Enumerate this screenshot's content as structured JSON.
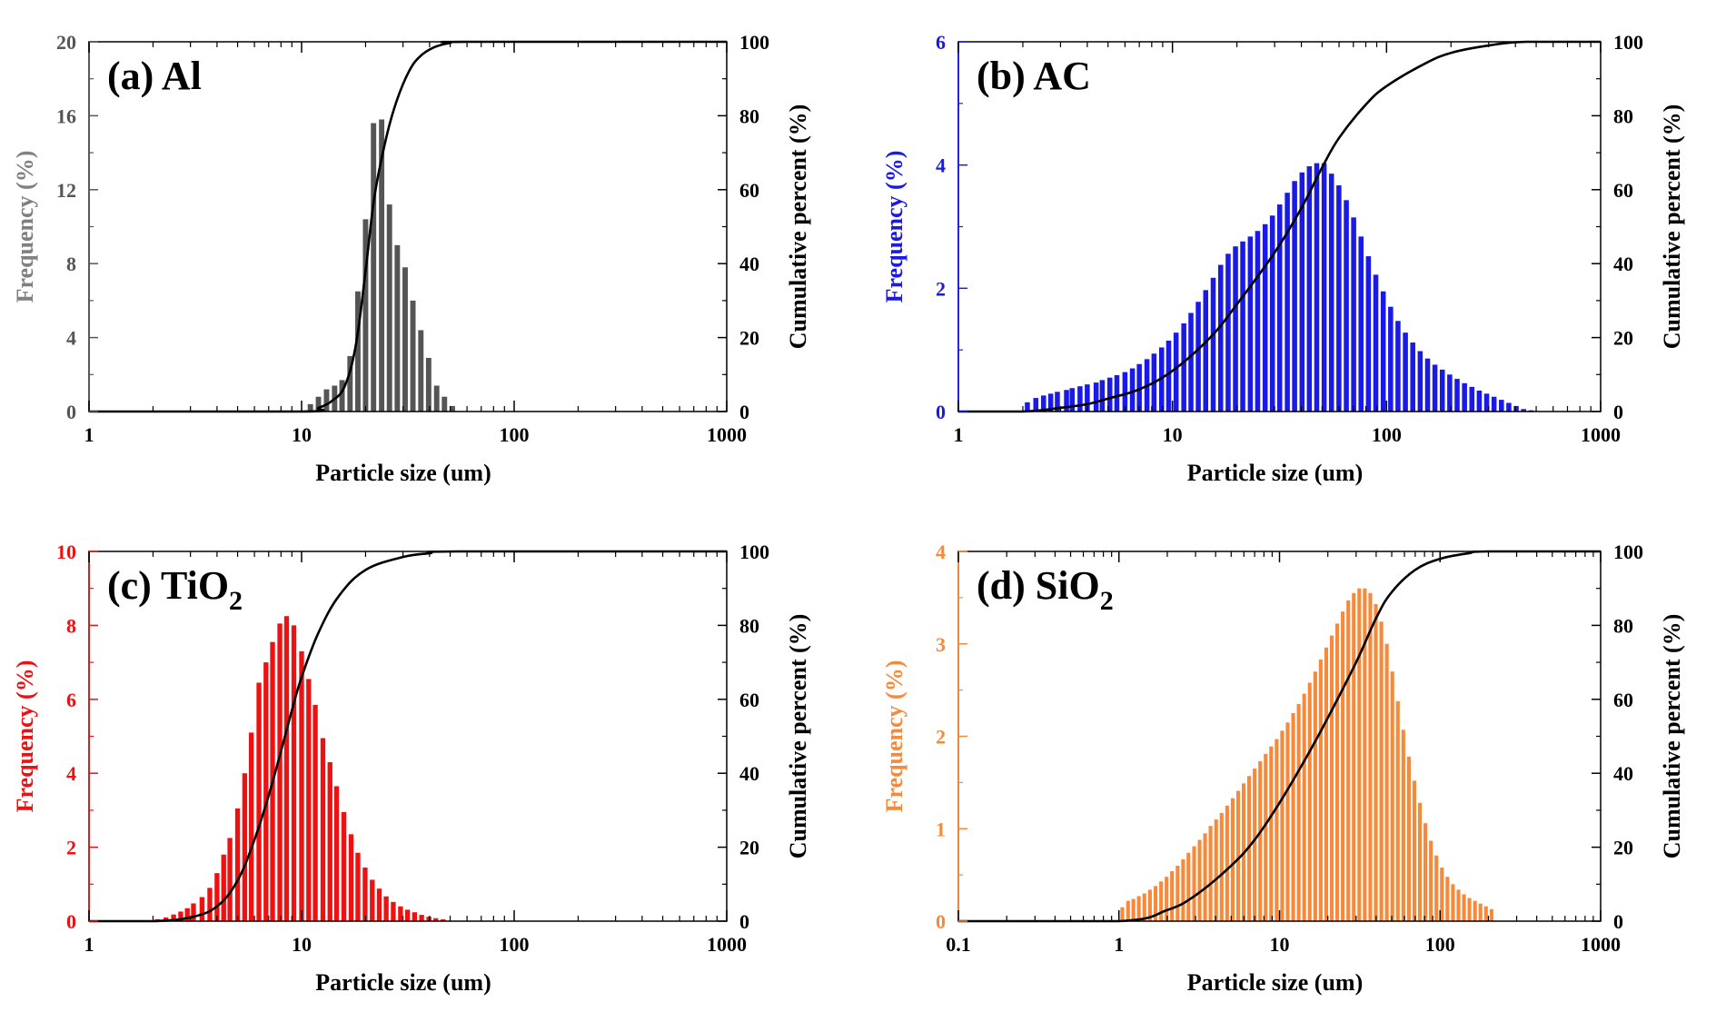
{
  "chart_data": [
    {
      "type": "bar",
      "panel_label": "(a) Al",
      "label_main": "(a) Al",
      "label_sub": "",
      "xlabel": "Particle size (um)",
      "ylabel_left": "Frequency (%)",
      "ylabel_right": "Cumulative percent (%)",
      "x_scale": "log",
      "xlim": [
        1,
        1000
      ],
      "x_ticks": [
        "1",
        "10",
        "100",
        "1000"
      ],
      "ylim_left": [
        0,
        20
      ],
      "y_ticks_left": [
        "0",
        "4",
        "8",
        "12",
        "16",
        "20"
      ],
      "ylim_right": [
        0,
        100
      ],
      "y_ticks_right": [
        "0",
        "20",
        "40",
        "60",
        "80",
        "100"
      ],
      "bar_color": "#555555",
      "ylabel_left_color": "#808080",
      "tick_left_color": "#555555",
      "curve_color": "#000000",
      "bars": [
        {
          "x": 11.0,
          "y": 0.4
        },
        {
          "x": 12.0,
          "y": 0.8
        },
        {
          "x": 13.1,
          "y": 1.2
        },
        {
          "x": 14.3,
          "y": 1.4
        },
        {
          "x": 15.5,
          "y": 1.7
        },
        {
          "x": 16.9,
          "y": 3.0
        },
        {
          "x": 18.4,
          "y": 6.5
        },
        {
          "x": 20.0,
          "y": 10.4
        },
        {
          "x": 21.8,
          "y": 15.6
        },
        {
          "x": 23.8,
          "y": 15.8
        },
        {
          "x": 25.9,
          "y": 11.2
        },
        {
          "x": 28.2,
          "y": 9.0
        },
        {
          "x": 30.7,
          "y": 7.8
        },
        {
          "x": 33.4,
          "y": 6.0
        },
        {
          "x": 36.4,
          "y": 4.4
        },
        {
          "x": 39.6,
          "y": 2.9
        },
        {
          "x": 43.2,
          "y": 1.4
        },
        {
          "x": 47.0,
          "y": 0.8
        },
        {
          "x": 51.2,
          "y": 0.3
        }
      ],
      "cumulative": [
        {
          "x": 1,
          "y": 0
        },
        {
          "x": 10,
          "y": 0
        },
        {
          "x": 12,
          "y": 1
        },
        {
          "x": 14,
          "y": 3
        },
        {
          "x": 16,
          "y": 7
        },
        {
          "x": 18,
          "y": 18
        },
        {
          "x": 20,
          "y": 38
        },
        {
          "x": 22,
          "y": 58
        },
        {
          "x": 25,
          "y": 74
        },
        {
          "x": 28,
          "y": 84
        },
        {
          "x": 32,
          "y": 92
        },
        {
          "x": 36,
          "y": 96
        },
        {
          "x": 42,
          "y": 98.5
        },
        {
          "x": 50,
          "y": 99.7
        },
        {
          "x": 60,
          "y": 100
        },
        {
          "x": 1000,
          "y": 100
        }
      ]
    },
    {
      "type": "bar",
      "panel_label": "(b) AC",
      "label_main": "(b) AC",
      "label_sub": "",
      "xlabel": "Particle size (um)",
      "ylabel_left": "Frequency (%)",
      "ylabel_right": "Cumulative percent (%)",
      "x_scale": "log",
      "xlim": [
        1,
        1000
      ],
      "x_ticks": [
        "1",
        "10",
        "100",
        "1000"
      ],
      "ylim_left": [
        0,
        6
      ],
      "y_ticks_left": [
        "0",
        "2",
        "4",
        "6"
      ],
      "ylim_right": [
        0,
        100
      ],
      "y_ticks_right": [
        "0",
        "20",
        "40",
        "60",
        "80",
        "100"
      ],
      "bar_color": "#1a1ae6",
      "ylabel_left_color": "#1a1ae6",
      "tick_left_color": "#1a1ae6",
      "curve_color": "#000000",
      "bars": [
        {
          "x": 2.1,
          "y": 0.15
        },
        {
          "x": 2.3,
          "y": 0.22
        },
        {
          "x": 2.5,
          "y": 0.26
        },
        {
          "x": 2.7,
          "y": 0.29
        },
        {
          "x": 2.9,
          "y": 0.32
        },
        {
          "x": 3.2,
          "y": 0.35
        },
        {
          "x": 3.4,
          "y": 0.38
        },
        {
          "x": 3.7,
          "y": 0.41
        },
        {
          "x": 4.0,
          "y": 0.44
        },
        {
          "x": 4.4,
          "y": 0.47
        },
        {
          "x": 4.7,
          "y": 0.51
        },
        {
          "x": 5.1,
          "y": 0.55
        },
        {
          "x": 5.5,
          "y": 0.59
        },
        {
          "x": 6.0,
          "y": 0.64
        },
        {
          "x": 6.5,
          "y": 0.7
        },
        {
          "x": 7.0,
          "y": 0.77
        },
        {
          "x": 7.6,
          "y": 0.85
        },
        {
          "x": 8.2,
          "y": 0.94
        },
        {
          "x": 8.9,
          "y": 1.04
        },
        {
          "x": 9.6,
          "y": 1.15
        },
        {
          "x": 10.4,
          "y": 1.28
        },
        {
          "x": 11.3,
          "y": 1.43
        },
        {
          "x": 12.2,
          "y": 1.6
        },
        {
          "x": 13.2,
          "y": 1.78
        },
        {
          "x": 14.3,
          "y": 1.97
        },
        {
          "x": 15.5,
          "y": 2.17
        },
        {
          "x": 16.8,
          "y": 2.38
        },
        {
          "x": 18.2,
          "y": 2.56
        },
        {
          "x": 19.7,
          "y": 2.68
        },
        {
          "x": 21.3,
          "y": 2.76
        },
        {
          "x": 23.1,
          "y": 2.84
        },
        {
          "x": 25.0,
          "y": 2.93
        },
        {
          "x": 27.1,
          "y": 3.04
        },
        {
          "x": 29.3,
          "y": 3.18
        },
        {
          "x": 31.7,
          "y": 3.36
        },
        {
          "x": 34.4,
          "y": 3.55
        },
        {
          "x": 37.2,
          "y": 3.74
        },
        {
          "x": 40.3,
          "y": 3.88
        },
        {
          "x": 43.6,
          "y": 3.98
        },
        {
          "x": 47.2,
          "y": 4.03
        },
        {
          "x": 51.1,
          "y": 4.03
        },
        {
          "x": 55.3,
          "y": 3.86
        },
        {
          "x": 59.9,
          "y": 3.67
        },
        {
          "x": 64.9,
          "y": 3.43
        },
        {
          "x": 70.2,
          "y": 3.15
        },
        {
          "x": 76.0,
          "y": 2.84
        },
        {
          "x": 82.3,
          "y": 2.52
        },
        {
          "x": 89.1,
          "y": 2.22
        },
        {
          "x": 96.5,
          "y": 1.95
        },
        {
          "x": 104.5,
          "y": 1.7
        },
        {
          "x": 113.1,
          "y": 1.47
        },
        {
          "x": 122.5,
          "y": 1.28
        },
        {
          "x": 132.6,
          "y": 1.12
        },
        {
          "x": 143.6,
          "y": 0.98
        },
        {
          "x": 155.5,
          "y": 0.86
        },
        {
          "x": 168.3,
          "y": 0.76
        },
        {
          "x": 182.2,
          "y": 0.68
        },
        {
          "x": 197.3,
          "y": 0.6
        },
        {
          "x": 213.6,
          "y": 0.53
        },
        {
          "x": 231.3,
          "y": 0.46
        },
        {
          "x": 250.4,
          "y": 0.4
        },
        {
          "x": 271.1,
          "y": 0.34
        },
        {
          "x": 293.5,
          "y": 0.29
        },
        {
          "x": 317.8,
          "y": 0.24
        },
        {
          "x": 344.1,
          "y": 0.19
        },
        {
          "x": 372.5,
          "y": 0.14
        },
        {
          "x": 403.3,
          "y": 0.09
        },
        {
          "x": 436.7,
          "y": 0.04
        },
        {
          "x": 472.8,
          "y": 0.02
        }
      ],
      "cumulative": [
        {
          "x": 1,
          "y": 0
        },
        {
          "x": 2,
          "y": 0
        },
        {
          "x": 3,
          "y": 1
        },
        {
          "x": 4,
          "y": 2
        },
        {
          "x": 5,
          "y": 3.5
        },
        {
          "x": 7,
          "y": 6
        },
        {
          "x": 10,
          "y": 11
        },
        {
          "x": 15,
          "y": 20
        },
        {
          "x": 20,
          "y": 29
        },
        {
          "x": 30,
          "y": 43
        },
        {
          "x": 40,
          "y": 55
        },
        {
          "x": 50,
          "y": 66
        },
        {
          "x": 60,
          "y": 74
        },
        {
          "x": 80,
          "y": 83
        },
        {
          "x": 100,
          "y": 88
        },
        {
          "x": 150,
          "y": 94
        },
        {
          "x": 200,
          "y": 97
        },
        {
          "x": 300,
          "y": 99
        },
        {
          "x": 450,
          "y": 100
        },
        {
          "x": 1000,
          "y": 100
        }
      ]
    },
    {
      "type": "bar",
      "panel_label": "(c) TiO2",
      "label_main": "(c) TiO",
      "label_sub": "2",
      "xlabel": "Particle size (um)",
      "ylabel_left": "Frequency (%)",
      "ylabel_right": "Cumulative percent (%)",
      "x_scale": "log",
      "xlim": [
        1,
        1000
      ],
      "x_ticks": [
        "1",
        "10",
        "100",
        "1000"
      ],
      "ylim_left": [
        0,
        10
      ],
      "y_ticks_left": [
        "0",
        "2",
        "4",
        "6",
        "8",
        "10"
      ],
      "ylim_right": [
        0,
        100
      ],
      "y_ticks_right": [
        "0",
        "20",
        "40",
        "60",
        "80",
        "100"
      ],
      "bar_color": "#ee1111",
      "ylabel_left_color": "#ee1111",
      "tick_left_color": "#ee1111",
      "curve_color": "#000000",
      "bars": [
        {
          "x": 2.1,
          "y": 0.05
        },
        {
          "x": 2.3,
          "y": 0.1
        },
        {
          "x": 2.5,
          "y": 0.18
        },
        {
          "x": 2.7,
          "y": 0.26
        },
        {
          "x": 2.9,
          "y": 0.35
        },
        {
          "x": 3.1,
          "y": 0.48
        },
        {
          "x": 3.4,
          "y": 0.65
        },
        {
          "x": 3.7,
          "y": 0.9
        },
        {
          "x": 4.0,
          "y": 1.3
        },
        {
          "x": 4.3,
          "y": 1.8
        },
        {
          "x": 4.6,
          "y": 2.25
        },
        {
          "x": 5.0,
          "y": 3.05
        },
        {
          "x": 5.4,
          "y": 4.0
        },
        {
          "x": 5.8,
          "y": 5.1
        },
        {
          "x": 6.3,
          "y": 6.45
        },
        {
          "x": 6.8,
          "y": 7.0
        },
        {
          "x": 7.3,
          "y": 7.55
        },
        {
          "x": 7.9,
          "y": 8.05
        },
        {
          "x": 8.5,
          "y": 8.25
        },
        {
          "x": 9.2,
          "y": 8.0
        },
        {
          "x": 10.0,
          "y": 7.3
        },
        {
          "x": 10.8,
          "y": 6.55
        },
        {
          "x": 11.6,
          "y": 5.85
        },
        {
          "x": 12.6,
          "y": 4.95
        },
        {
          "x": 13.6,
          "y": 4.3
        },
        {
          "x": 14.6,
          "y": 3.65
        },
        {
          "x": 15.8,
          "y": 2.95
        },
        {
          "x": 17.1,
          "y": 2.35
        },
        {
          "x": 18.4,
          "y": 1.85
        },
        {
          "x": 19.9,
          "y": 1.45
        },
        {
          "x": 21.5,
          "y": 1.12
        },
        {
          "x": 23.2,
          "y": 0.88
        },
        {
          "x": 25.0,
          "y": 0.67
        },
        {
          "x": 27.0,
          "y": 0.52
        },
        {
          "x": 29.2,
          "y": 0.4
        },
        {
          "x": 31.5,
          "y": 0.31
        },
        {
          "x": 34.0,
          "y": 0.24
        },
        {
          "x": 36.7,
          "y": 0.17
        },
        {
          "x": 39.7,
          "y": 0.12
        },
        {
          "x": 42.8,
          "y": 0.08
        },
        {
          "x": 46.3,
          "y": 0.05
        }
      ],
      "cumulative": [
        {
          "x": 1,
          "y": 0
        },
        {
          "x": 2,
          "y": 0
        },
        {
          "x": 3,
          "y": 1
        },
        {
          "x": 4,
          "y": 4
        },
        {
          "x": 5,
          "y": 11
        },
        {
          "x": 6,
          "y": 22
        },
        {
          "x": 7,
          "y": 34
        },
        {
          "x": 8,
          "y": 46
        },
        {
          "x": 9,
          "y": 57
        },
        {
          "x": 10,
          "y": 66
        },
        {
          "x": 12,
          "y": 78
        },
        {
          "x": 15,
          "y": 88
        },
        {
          "x": 20,
          "y": 95
        },
        {
          "x": 30,
          "y": 98.5
        },
        {
          "x": 40,
          "y": 99.5
        },
        {
          "x": 55,
          "y": 100
        },
        {
          "x": 1000,
          "y": 100
        }
      ]
    },
    {
      "type": "bar",
      "panel_label": "(d) SiO2",
      "label_main": "(d) SiO",
      "label_sub": "2",
      "xlabel": "Particle size (um)",
      "ylabel_left": "Frequency (%)",
      "ylabel_right": "Cumulative percent (%)",
      "x_scale": "log",
      "xlim": [
        0.1,
        1000
      ],
      "x_ticks": [
        "0.1",
        "1",
        "10",
        "100",
        "1000"
      ],
      "ylim_left": [
        0,
        4
      ],
      "y_ticks_left": [
        "0",
        "1",
        "2",
        "3",
        "4"
      ],
      "ylim_right": [
        0,
        100
      ],
      "y_ticks_right": [
        "0",
        "20",
        "40",
        "60",
        "80",
        "100"
      ],
      "bar_color": "#f7893a",
      "ylabel_left_color": "#f7893a",
      "tick_left_color": "#f7893a",
      "curve_color": "#000000",
      "bars": [
        {
          "x": 1.05,
          "y": 0.15
        },
        {
          "x": 1.14,
          "y": 0.22
        },
        {
          "x": 1.23,
          "y": 0.24
        },
        {
          "x": 1.33,
          "y": 0.27
        },
        {
          "x": 1.44,
          "y": 0.3
        },
        {
          "x": 1.56,
          "y": 0.34
        },
        {
          "x": 1.69,
          "y": 0.38
        },
        {
          "x": 1.83,
          "y": 0.43
        },
        {
          "x": 1.98,
          "y": 0.48
        },
        {
          "x": 2.14,
          "y": 0.54
        },
        {
          "x": 2.32,
          "y": 0.6
        },
        {
          "x": 2.51,
          "y": 0.67
        },
        {
          "x": 2.71,
          "y": 0.74
        },
        {
          "x": 2.94,
          "y": 0.81
        },
        {
          "x": 3.18,
          "y": 0.88
        },
        {
          "x": 3.44,
          "y": 0.95
        },
        {
          "x": 3.72,
          "y": 1.03
        },
        {
          "x": 4.03,
          "y": 1.1
        },
        {
          "x": 4.36,
          "y": 1.17
        },
        {
          "x": 4.72,
          "y": 1.25
        },
        {
          "x": 5.11,
          "y": 1.33
        },
        {
          "x": 5.53,
          "y": 1.41
        },
        {
          "x": 5.98,
          "y": 1.49
        },
        {
          "x": 6.47,
          "y": 1.57
        },
        {
          "x": 7.0,
          "y": 1.65
        },
        {
          "x": 7.58,
          "y": 1.73
        },
        {
          "x": 8.2,
          "y": 1.81
        },
        {
          "x": 8.87,
          "y": 1.89
        },
        {
          "x": 9.6,
          "y": 1.97
        },
        {
          "x": 10.39,
          "y": 2.06
        },
        {
          "x": 11.24,
          "y": 2.15
        },
        {
          "x": 12.17,
          "y": 2.25
        },
        {
          "x": 13.17,
          "y": 2.35
        },
        {
          "x": 14.25,
          "y": 2.46
        },
        {
          "x": 15.42,
          "y": 2.58
        },
        {
          "x": 16.69,
          "y": 2.7
        },
        {
          "x": 18.06,
          "y": 2.83
        },
        {
          "x": 19.54,
          "y": 2.96
        },
        {
          "x": 21.15,
          "y": 3.09
        },
        {
          "x": 22.89,
          "y": 3.22
        },
        {
          "x": 24.77,
          "y": 3.35
        },
        {
          "x": 26.81,
          "y": 3.47
        },
        {
          "x": 29.01,
          "y": 3.55
        },
        {
          "x": 31.4,
          "y": 3.6
        },
        {
          "x": 33.98,
          "y": 3.6
        },
        {
          "x": 36.77,
          "y": 3.55
        },
        {
          "x": 39.8,
          "y": 3.43
        },
        {
          "x": 43.07,
          "y": 3.24
        },
        {
          "x": 46.61,
          "y": 3.0
        },
        {
          "x": 50.44,
          "y": 2.7
        },
        {
          "x": 54.59,
          "y": 2.38
        },
        {
          "x": 59.07,
          "y": 2.07
        },
        {
          "x": 63.93,
          "y": 1.78
        },
        {
          "x": 69.18,
          "y": 1.52
        },
        {
          "x": 74.87,
          "y": 1.28
        },
        {
          "x": 81.02,
          "y": 1.06
        },
        {
          "x": 87.68,
          "y": 0.87
        },
        {
          "x": 94.89,
          "y": 0.71
        },
        {
          "x": 102.7,
          "y": 0.58
        },
        {
          "x": 111.1,
          "y": 0.48
        },
        {
          "x": 120.3,
          "y": 0.4
        },
        {
          "x": 130.2,
          "y": 0.34
        },
        {
          "x": 140.9,
          "y": 0.29
        },
        {
          "x": 152.4,
          "y": 0.25
        },
        {
          "x": 165.0,
          "y": 0.22
        },
        {
          "x": 178.5,
          "y": 0.19
        },
        {
          "x": 193.2,
          "y": 0.16
        },
        {
          "x": 209.1,
          "y": 0.13
        }
      ],
      "cumulative": [
        {
          "x": 0.1,
          "y": 0
        },
        {
          "x": 1.0,
          "y": 0
        },
        {
          "x": 2,
          "y": 3
        },
        {
          "x": 3,
          "y": 7
        },
        {
          "x": 5,
          "y": 15
        },
        {
          "x": 7,
          "y": 22
        },
        {
          "x": 10,
          "y": 32
        },
        {
          "x": 15,
          "y": 45
        },
        {
          "x": 20,
          "y": 55
        },
        {
          "x": 30,
          "y": 70
        },
        {
          "x": 40,
          "y": 82
        },
        {
          "x": 50,
          "y": 89
        },
        {
          "x": 70,
          "y": 95
        },
        {
          "x": 100,
          "y": 98
        },
        {
          "x": 150,
          "y": 99.5
        },
        {
          "x": 200,
          "y": 100
        },
        {
          "x": 1000,
          "y": 100
        }
      ]
    }
  ]
}
